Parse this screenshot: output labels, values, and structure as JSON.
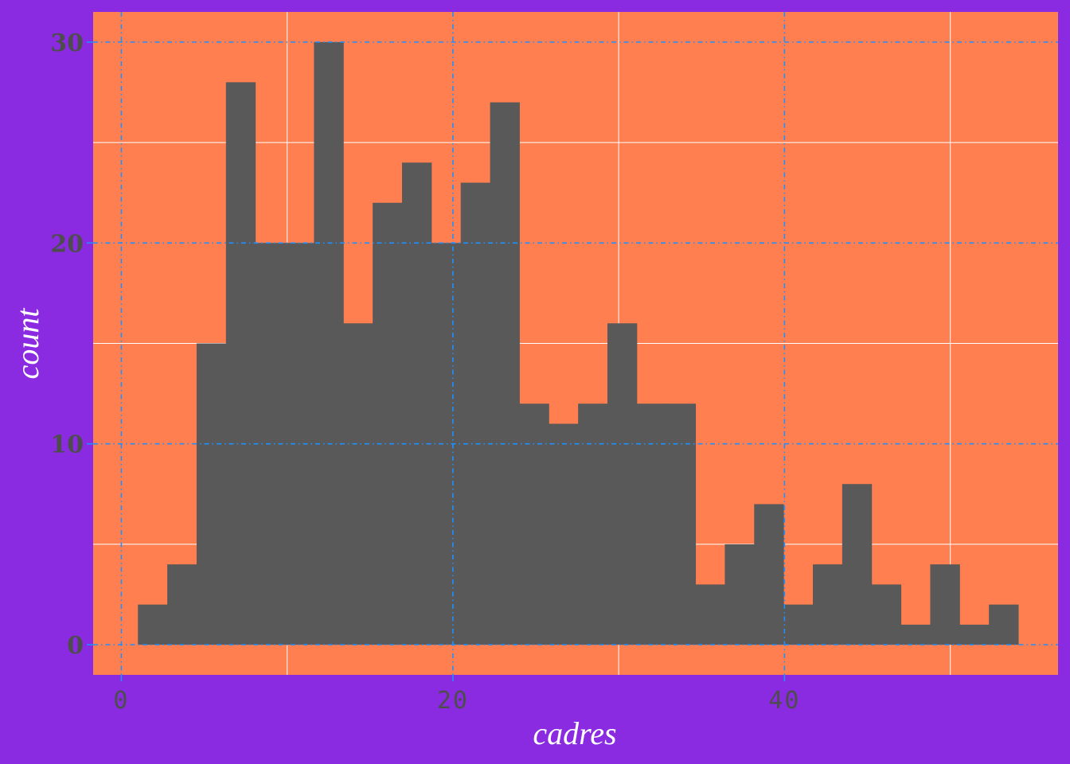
{
  "chart_data": {
    "type": "bar",
    "subtype": "histogram",
    "xlabel": "cadres",
    "ylabel": "count",
    "xlim": [
      -1.7,
      56.5
    ],
    "ylim": [
      -1.5,
      31.5
    ],
    "x_ticks": [
      0,
      20,
      40
    ],
    "y_ticks": [
      0,
      10,
      20,
      30
    ],
    "grid": true,
    "bin_width": 1.77,
    "bins": [
      {
        "x": 1.0,
        "count": 2
      },
      {
        "x": 2.77,
        "count": 4
      },
      {
        "x": 4.54,
        "count": 15
      },
      {
        "x": 6.31,
        "count": 28
      },
      {
        "x": 8.08,
        "count": 20
      },
      {
        "x": 9.85,
        "count": 20
      },
      {
        "x": 11.62,
        "count": 30
      },
      {
        "x": 13.39,
        "count": 16
      },
      {
        "x": 15.16,
        "count": 22
      },
      {
        "x": 16.93,
        "count": 24
      },
      {
        "x": 18.7,
        "count": 20
      },
      {
        "x": 20.47,
        "count": 23
      },
      {
        "x": 22.24,
        "count": 27
      },
      {
        "x": 24.01,
        "count": 12
      },
      {
        "x": 25.78,
        "count": 11
      },
      {
        "x": 27.55,
        "count": 12
      },
      {
        "x": 29.32,
        "count": 16
      },
      {
        "x": 31.09,
        "count": 12
      },
      {
        "x": 32.86,
        "count": 12
      },
      {
        "x": 34.63,
        "count": 3
      },
      {
        "x": 36.4,
        "count": 5
      },
      {
        "x": 38.17,
        "count": 7
      },
      {
        "x": 39.94,
        "count": 2
      },
      {
        "x": 41.71,
        "count": 4
      },
      {
        "x": 43.48,
        "count": 8
      },
      {
        "x": 45.25,
        "count": 3
      },
      {
        "x": 47.02,
        "count": 1
      },
      {
        "x": 48.79,
        "count": 4
      },
      {
        "x": 50.56,
        "count": 1
      },
      {
        "x": 52.33,
        "count": 2
      }
    ],
    "colors": {
      "background": "#8A2BE2",
      "panel": "#FF7F50",
      "bar": "#595959",
      "minor_grid": "#FFFFFF",
      "major_grid": "#1E90FF",
      "tick_text": "#4D4D4D",
      "title_text": "#FFFFFF"
    }
  }
}
